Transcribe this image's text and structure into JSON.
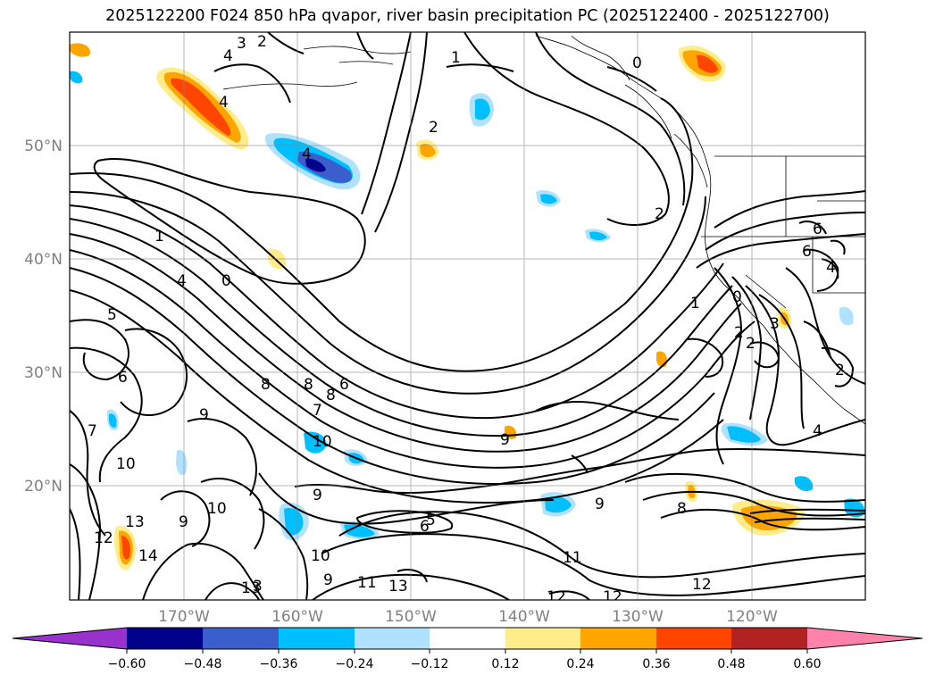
{
  "title": "2025122200 F024 850 hPa qvapor, river basin precipitation PC (2025122400 - 2025122700)",
  "map": {
    "lat_labels": [
      "50°N",
      "40°N",
      "30°N",
      "20°N"
    ],
    "lon_labels": [
      "170°W",
      "160°W",
      "150°W",
      "140°W",
      "130°W",
      "120°W"
    ],
    "lat_values": [
      50,
      40,
      30,
      20
    ],
    "lon_values": [
      -170,
      -160,
      -150,
      -140,
      -130,
      -120
    ],
    "extent": {
      "lon_min": -178,
      "lon_max": -108,
      "lat_min": 10,
      "lat_max": 60
    }
  },
  "colorbar": {
    "ticks": [
      "−0.60",
      "−0.48",
      "−0.36",
      "−0.24",
      "−0.12",
      "0.12",
      "0.24",
      "0.36",
      "0.48",
      "0.60"
    ],
    "colors": [
      "#9932cc",
      "#00008b",
      "#3a5fcd",
      "#00bfff",
      "#b0e2ff",
      "#ffffff",
      "#ffec8b",
      "#ffa500",
      "#ff4500",
      "#b22222",
      "#ff82ab"
    ]
  },
  "contour_labels": [
    "4",
    "3",
    "2",
    "1",
    "0",
    "2",
    "2",
    "4",
    "4",
    "1",
    "0",
    "5",
    "6",
    "8",
    "8",
    "8",
    "7",
    "6",
    "9",
    "7",
    "10",
    "9",
    "10",
    "6",
    "5",
    "13",
    "12",
    "14",
    "9",
    "10",
    "11",
    "13",
    "13",
    "12",
    "12",
    "12",
    "9",
    "8",
    "4",
    "2",
    "2",
    "3",
    "6",
    "6",
    "4",
    "1",
    "0",
    "2",
    "11",
    "9",
    "10",
    "9",
    "3",
    "4"
  ]
}
